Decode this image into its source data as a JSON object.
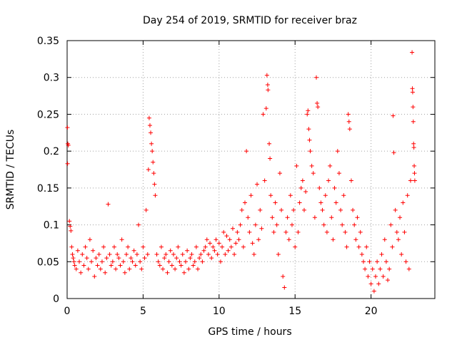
{
  "chart_data": {
    "type": "scatter",
    "title": "Day 254 of 2019, SRMTID for receiver braz",
    "xlabel": "GPS time / hours",
    "ylabel": "SRMTID / TECUs",
    "xlim": [
      0,
      24.2
    ],
    "ylim": [
      0,
      0.35
    ],
    "xticks": [
      0,
      5,
      10,
      15,
      20
    ],
    "xtick_labels": [
      "0",
      "5",
      "10",
      "15",
      "20"
    ],
    "yticks": [
      0,
      0.05,
      0.1,
      0.15,
      0.2,
      0.25,
      0.3,
      0.35
    ],
    "ytick_labels": [
      "0",
      "0.05",
      "0.1",
      "0.15",
      "0.2",
      "0.25",
      "0.3",
      "0.35"
    ],
    "grid": true,
    "marker": "+",
    "color": "#ff0000",
    "series": [
      {
        "name": "SRMTID",
        "points": [
          [
            0.02,
            0.232
          ],
          [
            0.05,
            0.21
          ],
          [
            0.08,
            0.208
          ],
          [
            0.03,
            0.183
          ],
          [
            0.15,
            0.105
          ],
          [
            0.2,
            0.098
          ],
          [
            0.25,
            0.092
          ],
          [
            0.3,
            0.07
          ],
          [
            0.35,
            0.06
          ],
          [
            0.4,
            0.055
          ],
          [
            0.45,
            0.05
          ],
          [
            0.5,
            0.045
          ],
          [
            0.6,
            0.04
          ],
          [
            0.7,
            0.065
          ],
          [
            0.8,
            0.05
          ],
          [
            0.9,
            0.035
          ],
          [
            1.0,
            0.06
          ],
          [
            1.1,
            0.045
          ],
          [
            1.2,
            0.07
          ],
          [
            1.3,
            0.055
          ],
          [
            1.4,
            0.04
          ],
          [
            1.5,
            0.08
          ],
          [
            1.6,
            0.05
          ],
          [
            1.7,
            0.065
          ],
          [
            1.8,
            0.03
          ],
          [
            1.9,
            0.055
          ],
          [
            2.0,
            0.045
          ],
          [
            2.1,
            0.06
          ],
          [
            2.2,
            0.04
          ],
          [
            2.3,
            0.05
          ],
          [
            2.4,
            0.07
          ],
          [
            2.5,
            0.035
          ],
          [
            2.6,
            0.055
          ],
          [
            2.7,
            0.128
          ],
          [
            2.8,
            0.06
          ],
          [
            2.9,
            0.045
          ],
          [
            3.0,
            0.05
          ],
          [
            3.1,
            0.07
          ],
          [
            3.2,
            0.04
          ],
          [
            3.3,
            0.06
          ],
          [
            3.4,
            0.055
          ],
          [
            3.5,
            0.045
          ],
          [
            3.6,
            0.08
          ],
          [
            3.7,
            0.05
          ],
          [
            3.8,
            0.035
          ],
          [
            3.9,
            0.06
          ],
          [
            4.0,
            0.07
          ],
          [
            4.1,
            0.04
          ],
          [
            4.2,
            0.055
          ],
          [
            4.3,
            0.05
          ],
          [
            4.4,
            0.065
          ],
          [
            4.5,
            0.045
          ],
          [
            4.6,
            0.06
          ],
          [
            4.7,
            0.1
          ],
          [
            4.8,
            0.05
          ],
          [
            4.9,
            0.04
          ],
          [
            5.0,
            0.07
          ],
          [
            5.1,
            0.055
          ],
          [
            5.2,
            0.12
          ],
          [
            5.3,
            0.06
          ],
          [
            5.4,
            0.245
          ],
          [
            5.45,
            0.235
          ],
          [
            5.5,
            0.225
          ],
          [
            5.55,
            0.21
          ],
          [
            5.6,
            0.2
          ],
          [
            5.65,
            0.185
          ],
          [
            5.7,
            0.17
          ],
          [
            5.75,
            0.155
          ],
          [
            5.35,
            0.175
          ],
          [
            5.8,
            0.14
          ],
          [
            5.9,
            0.06
          ],
          [
            6.0,
            0.05
          ],
          [
            6.1,
            0.045
          ],
          [
            6.2,
            0.07
          ],
          [
            6.3,
            0.04
          ],
          [
            6.4,
            0.055
          ],
          [
            6.5,
            0.06
          ],
          [
            6.6,
            0.035
          ],
          [
            6.7,
            0.05
          ],
          [
            6.8,
            0.065
          ],
          [
            6.9,
            0.045
          ],
          [
            7.0,
            0.06
          ],
          [
            7.1,
            0.04
          ],
          [
            7.2,
            0.055
          ],
          [
            7.3,
            0.07
          ],
          [
            7.4,
            0.05
          ],
          [
            7.5,
            0.045
          ],
          [
            7.6,
            0.06
          ],
          [
            7.7,
            0.035
          ],
          [
            7.8,
            0.05
          ],
          [
            7.9,
            0.065
          ],
          [
            8.0,
            0.04
          ],
          [
            8.1,
            0.055
          ],
          [
            8.2,
            0.06
          ],
          [
            8.3,
            0.045
          ],
          [
            8.4,
            0.05
          ],
          [
            8.5,
            0.07
          ],
          [
            8.6,
            0.04
          ],
          [
            8.7,
            0.055
          ],
          [
            8.8,
            0.06
          ],
          [
            8.9,
            0.05
          ],
          [
            9.0,
            0.065
          ],
          [
            9.1,
            0.07
          ],
          [
            9.2,
            0.08
          ],
          [
            9.3,
            0.06
          ],
          [
            9.4,
            0.075
          ],
          [
            9.5,
            0.055
          ],
          [
            9.6,
            0.07
          ],
          [
            9.7,
            0.065
          ],
          [
            9.8,
            0.08
          ],
          [
            9.9,
            0.06
          ],
          [
            10.0,
            0.075
          ],
          [
            10.1,
            0.05
          ],
          [
            10.2,
            0.07
          ],
          [
            10.3,
            0.09
          ],
          [
            10.4,
            0.06
          ],
          [
            10.5,
            0.085
          ],
          [
            10.6,
            0.065
          ],
          [
            10.7,
            0.08
          ],
          [
            10.8,
            0.07
          ],
          [
            10.9,
            0.095
          ],
          [
            11.0,
            0.06
          ],
          [
            11.1,
            0.075
          ],
          [
            11.2,
            0.09
          ],
          [
            11.3,
            0.08
          ],
          [
            11.4,
            0.1
          ],
          [
            11.5,
            0.12
          ],
          [
            11.6,
            0.07
          ],
          [
            11.7,
            0.13
          ],
          [
            11.8,
            0.2
          ],
          [
            11.9,
            0.11
          ],
          [
            12.0,
            0.09
          ],
          [
            12.1,
            0.14
          ],
          [
            12.2,
            0.075
          ],
          [
            12.3,
            0.06
          ],
          [
            12.4,
            0.1
          ],
          [
            12.5,
            0.155
          ],
          [
            12.6,
            0.08
          ],
          [
            12.7,
            0.12
          ],
          [
            12.8,
            0.095
          ],
          [
            12.9,
            0.25
          ],
          [
            13.0,
            0.16
          ],
          [
            13.1,
            0.258
          ],
          [
            13.15,
            0.303
          ],
          [
            13.2,
            0.29
          ],
          [
            13.22,
            0.283
          ],
          [
            13.3,
            0.21
          ],
          [
            13.35,
            0.19
          ],
          [
            13.4,
            0.14
          ],
          [
            13.5,
            0.11
          ],
          [
            13.6,
            0.09
          ],
          [
            13.7,
            0.13
          ],
          [
            13.8,
            0.1
          ],
          [
            13.9,
            0.06
          ],
          [
            14.0,
            0.17
          ],
          [
            14.1,
            0.12
          ],
          [
            14.2,
            0.03
          ],
          [
            14.3,
            0.015
          ],
          [
            14.4,
            0.09
          ],
          [
            14.5,
            0.11
          ],
          [
            14.6,
            0.08
          ],
          [
            14.7,
            0.14
          ],
          [
            14.8,
            0.1
          ],
          [
            14.9,
            0.12
          ],
          [
            15.0,
            0.07
          ],
          [
            15.1,
            0.18
          ],
          [
            15.2,
            0.09
          ],
          [
            15.3,
            0.13
          ],
          [
            15.4,
            0.15
          ],
          [
            15.5,
            0.16
          ],
          [
            15.6,
            0.12
          ],
          [
            15.7,
            0.145
          ],
          [
            15.8,
            0.25
          ],
          [
            15.85,
            0.255
          ],
          [
            15.9,
            0.23
          ],
          [
            15.95,
            0.215
          ],
          [
            16.0,
            0.2
          ],
          [
            16.1,
            0.18
          ],
          [
            16.2,
            0.17
          ],
          [
            16.3,
            0.11
          ],
          [
            16.4,
            0.3
          ],
          [
            16.45,
            0.265
          ],
          [
            16.5,
            0.26
          ],
          [
            16.6,
            0.15
          ],
          [
            16.7,
            0.13
          ],
          [
            16.8,
            0.12
          ],
          [
            16.9,
            0.1
          ],
          [
            17.0,
            0.14
          ],
          [
            17.1,
            0.09
          ],
          [
            17.2,
            0.16
          ],
          [
            17.3,
            0.18
          ],
          [
            17.4,
            0.11
          ],
          [
            17.5,
            0.08
          ],
          [
            17.6,
            0.15
          ],
          [
            17.7,
            0.13
          ],
          [
            17.8,
            0.2
          ],
          [
            17.9,
            0.17
          ],
          [
            18.0,
            0.12
          ],
          [
            18.1,
            0.1
          ],
          [
            18.2,
            0.14
          ],
          [
            18.3,
            0.09
          ],
          [
            18.4,
            0.07
          ],
          [
            18.5,
            0.25
          ],
          [
            18.55,
            0.24
          ],
          [
            18.6,
            0.23
          ],
          [
            18.7,
            0.16
          ],
          [
            18.8,
            0.12
          ],
          [
            18.9,
            0.1
          ],
          [
            19.0,
            0.08
          ],
          [
            19.1,
            0.11
          ],
          [
            19.2,
            0.07
          ],
          [
            19.3,
            0.09
          ],
          [
            19.4,
            0.06
          ],
          [
            19.5,
            0.05
          ],
          [
            19.6,
            0.04
          ],
          [
            19.7,
            0.07
          ],
          [
            19.8,
            0.03
          ],
          [
            19.9,
            0.05
          ],
          [
            20.0,
            0.02
          ],
          [
            20.1,
            0.04
          ],
          [
            20.2,
            0.01
          ],
          [
            20.3,
            0.03
          ],
          [
            20.4,
            0.05
          ],
          [
            20.5,
            0.02
          ],
          [
            20.6,
            0.04
          ],
          [
            20.7,
            0.06
          ],
          [
            20.8,
            0.03
          ],
          [
            20.9,
            0.08
          ],
          [
            21.0,
            0.05
          ],
          [
            21.1,
            0.025
          ],
          [
            21.2,
            0.04
          ],
          [
            21.3,
            0.1
          ],
          [
            21.4,
            0.07
          ],
          [
            21.45,
            0.248
          ],
          [
            21.5,
            0.198
          ],
          [
            21.6,
            0.12
          ],
          [
            21.7,
            0.09
          ],
          [
            21.8,
            0.08
          ],
          [
            21.9,
            0.11
          ],
          [
            22.0,
            0.06
          ],
          [
            22.1,
            0.13
          ],
          [
            22.2,
            0.09
          ],
          [
            22.3,
            0.05
          ],
          [
            22.4,
            0.14
          ],
          [
            22.5,
            0.04
          ],
          [
            22.6,
            0.16
          ],
          [
            22.7,
            0.334
          ],
          [
            22.72,
            0.285
          ],
          [
            22.74,
            0.28
          ],
          [
            22.76,
            0.26
          ],
          [
            22.78,
            0.24
          ],
          [
            22.8,
            0.21
          ],
          [
            22.82,
            0.205
          ],
          [
            22.84,
            0.18
          ],
          [
            22.86,
            0.17
          ],
          [
            22.88,
            0.16
          ]
        ]
      }
    ]
  }
}
